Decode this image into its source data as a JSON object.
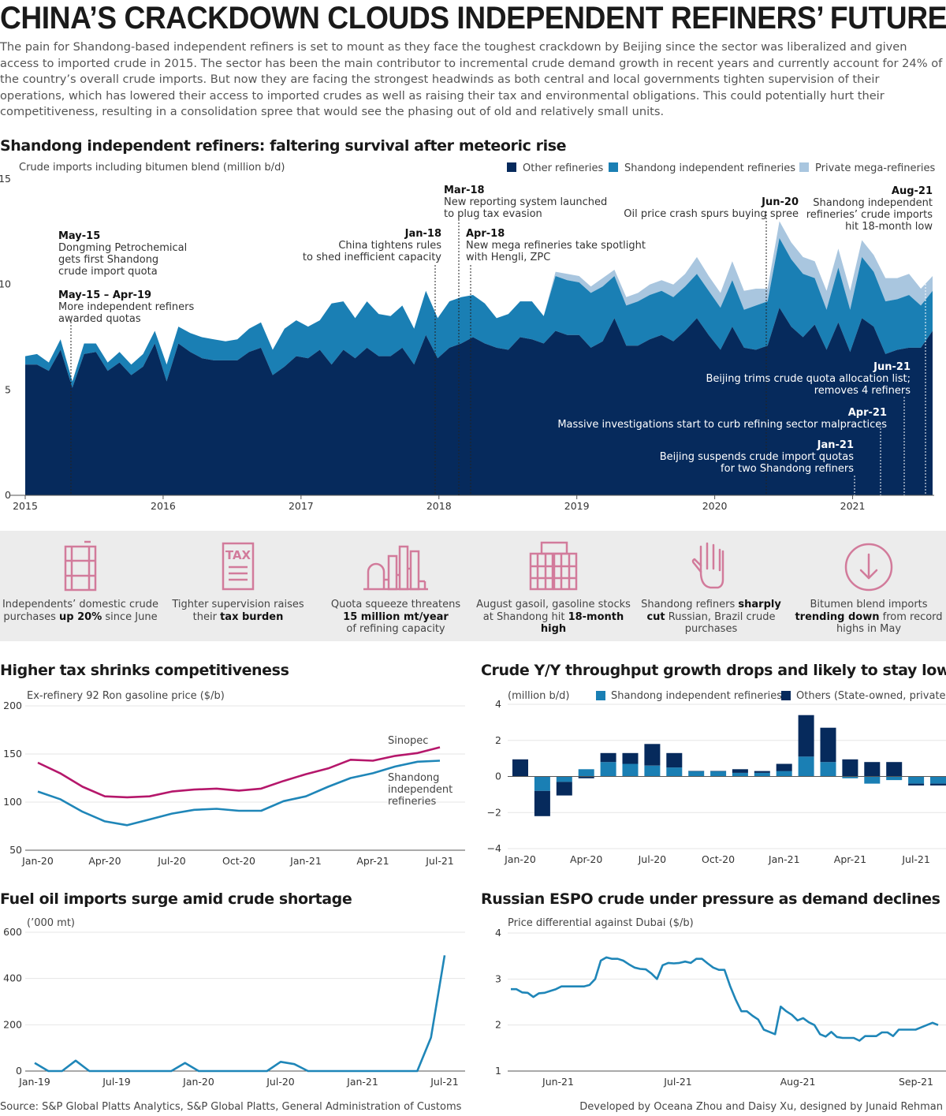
{
  "title": "CHINA’S CRACKDOWN CLOUDS INDEPENDENT REFINERS’ FUTURE",
  "intro": "The pain for Shandong-based independent refiners is set to mount as they face the toughest crackdown by Beijing since the sector was liberalized and given access to imported crude in 2015. The sector has been the main contributor to incremental crude demand growth in recent years and currently account for 24% of the country’s overall crude imports. But now they are facing the strongest headwinds as both central and local governments tighten supervision of their operations, which has lowered their access to imported crudes as well as raising their tax and environmental obligations. This could potentially hurt their competitiveness, resulting in a consolidation spree that would see the phasing out of old and relatively small units.",
  "colors": {
    "dark_navy": "#062a5c",
    "mid_blue": "#1a7fb4",
    "light_blue": "#a9c6df",
    "magenta": "#b5176b",
    "teal": "#1f86b8",
    "pink_icon": "#d27b9b"
  },
  "chart_data": [
    {
      "id": "main",
      "type": "area",
      "title": "Shandong independent refiners: faltering survival after meteoric rise",
      "ylabel": "Crude imports including bitumen blend (million b/d)",
      "ylim": [
        0,
        15
      ],
      "yticks": [
        0,
        5,
        10,
        15
      ],
      "xlim": [
        2015,
        2021.58
      ],
      "xticks": [
        "2015",
        "2016",
        "2017",
        "2018",
        "2019",
        "2020",
        "2021"
      ],
      "series": [
        {
          "name": "Other refineries",
          "color": "#062a5c",
          "values": [
            6.2,
            6.2,
            5.9,
            6.9,
            5.1,
            6.7,
            6.8,
            5.9,
            6.3,
            5.7,
            6.1,
            7.2,
            5.4,
            7.2,
            6.8,
            6.5,
            6.4,
            6.4,
            6.4,
            6.8,
            7.0,
            5.7,
            6.1,
            6.6,
            6.5,
            6.9,
            6.2,
            6.9,
            6.5,
            7.0,
            6.6,
            6.6,
            7.0,
            6.2,
            7.6,
            6.5,
            7.0,
            7.2,
            7.5,
            7.2,
            7.0,
            6.9,
            7.5,
            7.4,
            7.2,
            7.8,
            7.6,
            7.6,
            7.0,
            7.3,
            8.4,
            7.1,
            7.1,
            7.4,
            7.6,
            7.3,
            7.8,
            8.4,
            7.6,
            6.9,
            8.0,
            7.0,
            6.9,
            7.1,
            8.9,
            8.0,
            7.5,
            8.1,
            6.9,
            8.2,
            6.8,
            8.4,
            8.0,
            6.7,
            6.9,
            7.0,
            7.0,
            7.8
          ]
        },
        {
          "name": "Shandong independent refineries",
          "color": "#1a7fb4",
          "values": [
            0.4,
            0.5,
            0.4,
            0.5,
            0.3,
            0.5,
            0.4,
            0.4,
            0.5,
            0.5,
            0.6,
            0.6,
            0.8,
            0.8,
            0.9,
            1.0,
            1.0,
            0.9,
            1.0,
            1.1,
            1.2,
            1.2,
            1.8,
            1.7,
            1.5,
            1.4,
            2.9,
            2.3,
            1.9,
            2.2,
            2.0,
            1.9,
            2.0,
            1.7,
            2.1,
            1.9,
            2.2,
            2.2,
            2.0,
            1.9,
            1.4,
            1.7,
            1.7,
            1.8,
            1.3,
            2.6,
            2.6,
            2.5,
            2.6,
            2.6,
            2.0,
            1.9,
            2.1,
            2.1,
            2.1,
            2.1,
            2.1,
            2.1,
            2.1,
            2.0,
            2.2,
            1.8,
            2.1,
            2.1,
            3.3,
            3.2,
            3.0,
            2.2,
            1.9,
            2.6,
            2.0,
            2.9,
            2.6,
            2.5,
            2.4,
            2.5,
            2.0,
            1.9
          ]
        },
        {
          "name": "Private mega-refineries",
          "color": "#a9c6df",
          "values": [
            0,
            0,
            0,
            0,
            0,
            0,
            0,
            0,
            0,
            0,
            0,
            0,
            0,
            0,
            0,
            0,
            0,
            0,
            0,
            0,
            0,
            0,
            0,
            0,
            0,
            0,
            0,
            0,
            0,
            0,
            0,
            0,
            0,
            0,
            0,
            0,
            0,
            0,
            0,
            0,
            0,
            0,
            0,
            0,
            0,
            0.2,
            0.3,
            0.3,
            0.3,
            0.4,
            0.3,
            0.4,
            0.4,
            0.5,
            0.5,
            0.6,
            0.6,
            0.8,
            0.7,
            0.7,
            0.9,
            0.9,
            0.8,
            0.6,
            0.8,
            0.8,
            0.8,
            0.8,
            0.9,
            0.9,
            0.9,
            0.8,
            0.8,
            1.1,
            1.0,
            1.0,
            0.8,
            0.7
          ]
        }
      ],
      "annotations": [
        {
          "date": "May-15",
          "bold": "May-15",
          "lines": [
            "Dongming Petrochemical",
            "gets first Shandong",
            "crude import quota"
          ],
          "align": "start"
        },
        {
          "date": "May-15 – Apr-19",
          "bold": "May-15 – Apr-19",
          "lines": [
            "More independent refiners",
            "awarded quotas"
          ],
          "align": "start"
        },
        {
          "date": "Jan-18",
          "bold": "Jan-18",
          "lines": [
            "China tightens rules",
            "to shed inefficient capacity"
          ],
          "align": "end"
        },
        {
          "date": "Mar-18",
          "bold": "Mar-18",
          "lines": [
            "New reporting system launched",
            "to plug tax evasion"
          ],
          "align": "start"
        },
        {
          "date": "Apr-18",
          "bold": "Apr-18",
          "lines": [
            "New mega refineries take spotlight",
            "with Hengli, ZPC"
          ],
          "align": "start"
        },
        {
          "date": "Jun-20",
          "bold": "Jun-20",
          "lines": [
            "Oil price crash spurs buying spree"
          ],
          "align": "end"
        },
        {
          "date": "Aug-21",
          "bold": "Aug-21",
          "lines": [
            "Shandong independent",
            "refineries’ crude imports",
            "hit 18-month low"
          ],
          "align": "end"
        },
        {
          "date": "Jun-21",
          "bold": "Jun-21",
          "lines": [
            "Beijing trims crude quota allocation list;",
            "removes 4 refiners"
          ],
          "align": "end"
        },
        {
          "date": "Apr-21",
          "bold": "Apr-21",
          "lines": [
            "Massive investigations start to curb refining sector malpractices"
          ],
          "align": "end"
        },
        {
          "date": "Jan-21",
          "bold": "Jan-21",
          "lines": [
            "Beijing suspends crude import quotas",
            "for two Shandong refiners"
          ],
          "align": "end"
        }
      ]
    },
    {
      "id": "tax",
      "type": "line",
      "title": "Higher tax shrinks competitiveness",
      "ylabel": "Ex-refinery 92 Ron gasoline price ($/b)",
      "ylim": [
        50,
        200
      ],
      "yticks": [
        50,
        100,
        150,
        200
      ],
      "xticks": [
        "Jan-20",
        "Apr-20",
        "Jul-20",
        "Oct-20",
        "Jan-21",
        "Apr-21",
        "Jul-21"
      ],
      "series": [
        {
          "name": "Sinopec",
          "color": "#b5176b",
          "values": [
            141,
            130,
            116,
            106,
            105,
            106,
            111,
            113,
            114,
            112,
            114,
            122,
            129,
            135,
            144,
            143,
            148,
            151,
            157
          ]
        },
        {
          "name": "Shandong independent refineries",
          "label_lines": [
            "Shandong",
            "independent",
            "refineries"
          ],
          "color": "#1f86b8",
          "values": [
            111,
            103,
            90,
            80,
            76,
            82,
            88,
            92,
            93,
            91,
            91,
            101,
            106,
            116,
            125,
            130,
            137,
            142,
            143
          ]
        }
      ]
    },
    {
      "id": "throughput",
      "type": "bar",
      "title": "Crude Y/Y throughput growth drops and likely to stay low",
      "ylabel": "(million b/d)",
      "ylim": [
        -4,
        4
      ],
      "yticks": [
        -4,
        -2,
        0,
        2,
        4
      ],
      "xticks": [
        "Jan-20",
        "Apr-20",
        "Jul-20",
        "Oct-20",
        "Jan-21",
        "Apr-21",
        "Jul-21"
      ],
      "categories": [
        "Jan-20",
        "Feb-20",
        "Mar-20",
        "Apr-20",
        "May-20",
        "Jun-20",
        "Jul-20",
        "Aug-20",
        "Sep-20",
        "Oct-20",
        "Nov-20",
        "Dec-20",
        "Jan-21",
        "Feb-21",
        "Mar-21",
        "Apr-21",
        "May-21",
        "Jun-21",
        "Jul-21",
        "Aug-21"
      ],
      "series": [
        {
          "name": "Shandong independent refineries",
          "color": "#1a7fb4",
          "values": [
            0.0,
            -0.8,
            -0.3,
            0.4,
            0.8,
            0.7,
            0.6,
            0.5,
            0.3,
            0.3,
            0.2,
            0.2,
            0.3,
            1.1,
            0.8,
            -0.1,
            -0.4,
            -0.2,
            -0.4,
            -0.4
          ]
        },
        {
          "name": "Others (State-owned, private)",
          "color": "#062a5c",
          "values": [
            0.95,
            -1.4,
            -0.75,
            -0.1,
            0.5,
            0.6,
            1.2,
            0.8,
            0.0,
            0.0,
            0.2,
            0.1,
            0.4,
            2.3,
            1.9,
            0.95,
            0.8,
            0.8,
            -0.1,
            -0.1
          ]
        }
      ]
    },
    {
      "id": "fueloil",
      "type": "line",
      "title": "Fuel oil imports surge amid crude shortage",
      "ylabel": "(’000 mt)",
      "ylim": [
        0,
        600
      ],
      "yticks": [
        0,
        200,
        400,
        600
      ],
      "xticks": [
        "Jan-19",
        "Jul-19",
        "Jan-20",
        "Jul-20",
        "Jan-21",
        "Jul-21"
      ],
      "series": [
        {
          "name": "Fuel oil imports",
          "color": "#1f86b8",
          "values": [
            35,
            0,
            0,
            45,
            0,
            0,
            0,
            0,
            0,
            0,
            0,
            35,
            0,
            0,
            0,
            0,
            0,
            0,
            40,
            30,
            0,
            0,
            0,
            0,
            0,
            0,
            0,
            0,
            0,
            145,
            500
          ]
        }
      ]
    },
    {
      "id": "espo",
      "type": "line",
      "title": "Russian ESPO crude under pressure as demand declines",
      "ylabel": "Price differential against Dubai ($/b)",
      "ylim": [
        1,
        4
      ],
      "yticks": [
        1,
        2,
        3,
        4
      ],
      "xticks": [
        "Jun-21",
        "Jul-21",
        "Aug-21",
        "Sep-21"
      ],
      "series": [
        {
          "name": "ESPO differential",
          "color": "#1f86b8",
          "values": [
            2.78,
            2.78,
            2.71,
            2.7,
            2.61,
            2.69,
            2.7,
            2.74,
            2.78,
            2.84,
            2.84,
            2.84,
            2.84,
            2.84,
            2.87,
            3.0,
            3.4,
            3.47,
            3.44,
            3.44,
            3.4,
            3.32,
            3.25,
            3.22,
            3.21,
            3.12,
            3.0,
            3.3,
            3.35,
            3.34,
            3.35,
            3.38,
            3.35,
            3.44,
            3.44,
            3.34,
            3.25,
            3.2,
            3.2,
            2.85,
            2.55,
            2.3,
            2.3,
            2.2,
            2.12,
            1.9,
            1.85,
            1.8,
            2.4,
            2.3,
            2.22,
            2.1,
            2.15,
            2.06,
            2.0,
            1.8,
            1.75,
            1.85,
            1.74,
            1.72,
            1.72,
            1.72,
            1.66,
            1.76,
            1.76,
            1.76,
            1.84,
            1.84,
            1.76,
            1.9,
            1.9,
            1.9,
            1.9,
            1.95,
            2.0,
            2.05,
            2.0
          ]
        }
      ]
    }
  ],
  "features": [
    {
      "icon": "barrel-icon",
      "pre": "Independents’ domestic crude purchases",
      "bold": "up 20%",
      "post": "since June"
    },
    {
      "icon": "tax-document-icon",
      "pre": "Tighter supervision raises their",
      "bold": "tax burden",
      "post": ""
    },
    {
      "icon": "refinery-icon",
      "pre": "Quota squeeze threatens",
      "bold": "15 million mt/year",
      "post": "of refining capacity"
    },
    {
      "icon": "storage-tanks-icon",
      "pre": "August gasoil, gasoline stocks at Shandong hit",
      "bold": "18-month high",
      "post": ""
    },
    {
      "icon": "hand-stop-icon",
      "pre": "Shandong refiners",
      "bold": "sharply cut",
      "post": "Russian, Brazil crude purchases"
    },
    {
      "icon": "down-arrow-circle-icon",
      "pre": "Bitumen blend imports",
      "bold": "trending down",
      "post": "from record highs in May"
    }
  ],
  "source": "Source: S&P Global Platts Analytics, S&P Global Platts, General Administration of Customs",
  "credit": "Developed by Oceana Zhou and Daisy Xu, designed by Junaid Rehman"
}
